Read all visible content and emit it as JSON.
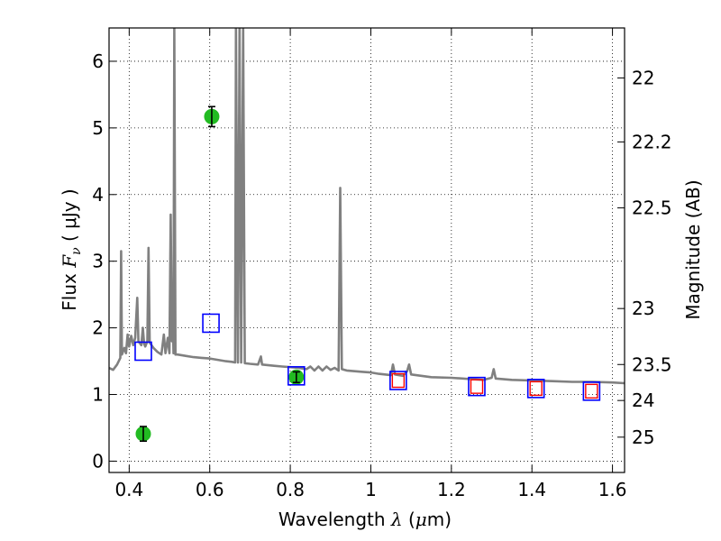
{
  "chart_data": {
    "type": "scatter",
    "title": "",
    "xlabel": "Wavelength  λ (μm)",
    "xlabel_parts": {
      "prefix": "Wavelength  ",
      "symbol": "λ",
      "unit_open": " (",
      "unit_mu": "μ",
      "unit_rest": "m)"
    },
    "ylabel": "Flux  Fν  ( μJy )",
    "ylabel_parts": {
      "prefix": "Flux  ",
      "symbol": "F",
      "subscript": "ν",
      "unit": "  ( μJy )"
    },
    "y2label": "Magnitude (AB)",
    "xlim": [
      0.35,
      1.63
    ],
    "ylim": [
      -0.17,
      6.5
    ],
    "grid": true,
    "x_ticks": [
      0.4,
      0.6,
      0.8,
      1.0,
      1.2,
      1.4,
      1.6
    ],
    "x_tick_labels": [
      "0.4",
      "0.6",
      "0.8",
      "1",
      "1.2",
      "1.4",
      "1.6"
    ],
    "y_ticks": [
      0,
      1,
      2,
      3,
      4,
      5,
      6
    ],
    "y_tick_labels": [
      "0",
      "1",
      "2",
      "3",
      "4",
      "5",
      "6"
    ],
    "y2_ticks": [
      {
        "flux": 5.75,
        "label": "22"
      },
      {
        "flux": 4.79,
        "label": "22.2"
      },
      {
        "flux": 3.8,
        "label": "22.5"
      },
      {
        "flux": 2.29,
        "label": "23"
      },
      {
        "flux": 1.45,
        "label": "23.5"
      },
      {
        "flux": 0.91,
        "label": "24"
      },
      {
        "flux": 0.36,
        "label": "25"
      }
    ],
    "colors": {
      "sed": "#808080",
      "observed_fill": "#22bb22",
      "model_square": "#0000ff",
      "model_square_inner": "#ff0000",
      "errorbar": "#000000"
    },
    "series": [
      {
        "kind": "sed_line",
        "points": [
          [
            0.35,
            1.4
          ],
          [
            0.36,
            1.37
          ],
          [
            0.37,
            1.45
          ],
          [
            0.378,
            1.55
          ],
          [
            0.38,
            3.15
          ],
          [
            0.382,
            1.6
          ],
          [
            0.388,
            1.7
          ],
          [
            0.392,
            1.62
          ],
          [
            0.396,
            1.9
          ],
          [
            0.4,
            1.72
          ],
          [
            0.405,
            1.88
          ],
          [
            0.41,
            1.74
          ],
          [
            0.415,
            1.85
          ],
          [
            0.42,
            2.45
          ],
          [
            0.423,
            1.8
          ],
          [
            0.43,
            1.74
          ],
          [
            0.434,
            2.0
          ],
          [
            0.437,
            1.76
          ],
          [
            0.44,
            1.72
          ],
          [
            0.445,
            1.8
          ],
          [
            0.448,
            3.2
          ],
          [
            0.451,
            1.78
          ],
          [
            0.46,
            1.7
          ],
          [
            0.47,
            1.64
          ],
          [
            0.48,
            1.6
          ],
          [
            0.486,
            1.9
          ],
          [
            0.49,
            1.62
          ],
          [
            0.496,
            1.85
          ],
          [
            0.5,
            1.62
          ],
          [
            0.503,
            3.7
          ],
          [
            0.506,
            1.8
          ],
          [
            0.508,
            2.2
          ],
          [
            0.51,
            1.62
          ],
          [
            0.512,
            6.5
          ],
          [
            0.515,
            1.6
          ],
          [
            0.52,
            1.6
          ],
          [
            0.54,
            1.58
          ],
          [
            0.56,
            1.56
          ],
          [
            0.58,
            1.55
          ],
          [
            0.6,
            1.54
          ],
          [
            0.62,
            1.52
          ],
          [
            0.64,
            1.5
          ],
          [
            0.655,
            1.49
          ],
          [
            0.663,
            1.48
          ],
          [
            0.665,
            6.5
          ],
          [
            0.67,
            1.48
          ],
          [
            0.674,
            6.5
          ],
          [
            0.678,
            1.48
          ],
          [
            0.683,
            6.5
          ],
          [
            0.687,
            1.47
          ],
          [
            0.7,
            1.46
          ],
          [
            0.72,
            1.45
          ],
          [
            0.727,
            1.57
          ],
          [
            0.73,
            1.45
          ],
          [
            0.76,
            1.43
          ],
          [
            0.78,
            1.42
          ],
          [
            0.8,
            1.41
          ],
          [
            0.82,
            1.4
          ],
          [
            0.84,
            1.38
          ],
          [
            0.85,
            1.42
          ],
          [
            0.86,
            1.36
          ],
          [
            0.87,
            1.42
          ],
          [
            0.88,
            1.36
          ],
          [
            0.89,
            1.42
          ],
          [
            0.9,
            1.37
          ],
          [
            0.91,
            1.4
          ],
          [
            0.92,
            1.36
          ],
          [
            0.924,
            4.1
          ],
          [
            0.928,
            1.38
          ],
          [
            0.94,
            1.36
          ],
          [
            0.96,
            1.35
          ],
          [
            0.98,
            1.34
          ],
          [
            1.0,
            1.33
          ],
          [
            1.02,
            1.31
          ],
          [
            1.05,
            1.29
          ],
          [
            1.055,
            1.45
          ],
          [
            1.06,
            1.3
          ],
          [
            1.08,
            1.28
          ],
          [
            1.09,
            1.35
          ],
          [
            1.095,
            1.45
          ],
          [
            1.1,
            1.3
          ],
          [
            1.15,
            1.26
          ],
          [
            1.2,
            1.25
          ],
          [
            1.25,
            1.23
          ],
          [
            1.28,
            1.22
          ],
          [
            1.3,
            1.25
          ],
          [
            1.305,
            1.38
          ],
          [
            1.31,
            1.24
          ],
          [
            1.35,
            1.22
          ],
          [
            1.4,
            1.21
          ],
          [
            1.45,
            1.2
          ],
          [
            1.5,
            1.19
          ],
          [
            1.55,
            1.19
          ],
          [
            1.6,
            1.18
          ],
          [
            1.63,
            1.17
          ]
        ]
      },
      {
        "kind": "observed",
        "points": [
          {
            "x": 0.435,
            "y": 0.41,
            "err": 0.11
          },
          {
            "x": 0.605,
            "y": 5.17,
            "err": 0.15
          },
          {
            "x": 0.815,
            "y": 1.26,
            "err": 0.08
          }
        ]
      },
      {
        "kind": "model_blue",
        "points": [
          {
            "x": 0.435,
            "y": 1.65
          },
          {
            "x": 0.603,
            "y": 2.07
          },
          {
            "x": 0.815,
            "y": 1.28
          },
          {
            "x": 1.068,
            "y": 1.21
          },
          {
            "x": 1.263,
            "y": 1.12
          },
          {
            "x": 1.41,
            "y": 1.09
          },
          {
            "x": 1.548,
            "y": 1.05
          }
        ]
      },
      {
        "kind": "model_red",
        "points": [
          {
            "x": 1.068,
            "y": 1.21
          },
          {
            "x": 1.263,
            "y": 1.12
          },
          {
            "x": 1.41,
            "y": 1.09
          },
          {
            "x": 1.548,
            "y": 1.05
          }
        ]
      }
    ]
  }
}
